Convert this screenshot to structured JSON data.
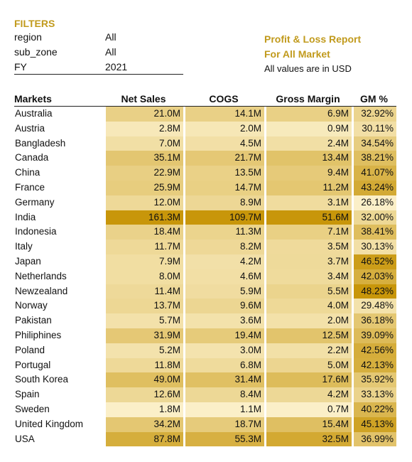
{
  "filters": {
    "title": "FILTERS",
    "items": [
      {
        "name": "region",
        "value": "All"
      },
      {
        "name": "sub_zone",
        "value": "All"
      },
      {
        "name": "FY",
        "value": "2021"
      }
    ]
  },
  "report": {
    "title": "Profit & Loss Report",
    "subtitle": "For All Market",
    "note": "All values are in USD"
  },
  "table": {
    "headers": [
      "Markets",
      "Net Sales",
      "COGS",
      "Gross Margin",
      "GM %"
    ],
    "rows": [
      {
        "market": "Australia",
        "net_sales": "21.0M",
        "cogs": "14.1M",
        "gross_margin": "6.9M",
        "gm_pct": "32.92%"
      },
      {
        "market": "Austria",
        "net_sales": "2.8M",
        "cogs": "2.0M",
        "gross_margin": "0.9M",
        "gm_pct": "30.11%"
      },
      {
        "market": "Bangladesh",
        "net_sales": "7.0M",
        "cogs": "4.5M",
        "gross_margin": "2.4M",
        "gm_pct": "34.54%"
      },
      {
        "market": "Canada",
        "net_sales": "35.1M",
        "cogs": "21.7M",
        "gross_margin": "13.4M",
        "gm_pct": "38.21%"
      },
      {
        "market": "China",
        "net_sales": "22.9M",
        "cogs": "13.5M",
        "gross_margin": "9.4M",
        "gm_pct": "41.07%"
      },
      {
        "market": "France",
        "net_sales": "25.9M",
        "cogs": "14.7M",
        "gross_margin": "11.2M",
        "gm_pct": "43.24%"
      },
      {
        "market": "Germany",
        "net_sales": "12.0M",
        "cogs": "8.9M",
        "gross_margin": "3.1M",
        "gm_pct": "26.18%"
      },
      {
        "market": "India",
        "net_sales": "161.3M",
        "cogs": "109.7M",
        "gross_margin": "51.6M",
        "gm_pct": "32.00%"
      },
      {
        "market": "Indonesia",
        "net_sales": "18.4M",
        "cogs": "11.3M",
        "gross_margin": "7.1M",
        "gm_pct": "38.41%"
      },
      {
        "market": "Italy",
        "net_sales": "11.7M",
        "cogs": "8.2M",
        "gross_margin": "3.5M",
        "gm_pct": "30.13%"
      },
      {
        "market": "Japan",
        "net_sales": "7.9M",
        "cogs": "4.2M",
        "gross_margin": "3.7M",
        "gm_pct": "46.52%"
      },
      {
        "market": "Netherlands",
        "net_sales": "8.0M",
        "cogs": "4.6M",
        "gross_margin": "3.4M",
        "gm_pct": "42.03%"
      },
      {
        "market": "Newzealand",
        "net_sales": "11.4M",
        "cogs": "5.9M",
        "gross_margin": "5.5M",
        "gm_pct": "48.23%"
      },
      {
        "market": "Norway",
        "net_sales": "13.7M",
        "cogs": "9.6M",
        "gross_margin": "4.0M",
        "gm_pct": "29.48%"
      },
      {
        "market": "Pakistan",
        "net_sales": "5.7M",
        "cogs": "3.6M",
        "gross_margin": "2.0M",
        "gm_pct": "36.18%"
      },
      {
        "market": "Philiphines",
        "net_sales": "31.9M",
        "cogs": "19.4M",
        "gross_margin": "12.5M",
        "gm_pct": "39.09%"
      },
      {
        "market": "Poland",
        "net_sales": "5.2M",
        "cogs": "3.0M",
        "gross_margin": "2.2M",
        "gm_pct": "42.56%"
      },
      {
        "market": "Portugal",
        "net_sales": "11.8M",
        "cogs": "6.8M",
        "gross_margin": "5.0M",
        "gm_pct": "42.13%"
      },
      {
        "market": "South Korea",
        "net_sales": "49.0M",
        "cogs": "31.4M",
        "gross_margin": "17.6M",
        "gm_pct": "35.92%"
      },
      {
        "market": "Spain",
        "net_sales": "12.6M",
        "cogs": "8.4M",
        "gross_margin": "4.2M",
        "gm_pct": "33.13%"
      },
      {
        "market": "Sweden",
        "net_sales": "1.8M",
        "cogs": "1.1M",
        "gross_margin": "0.7M",
        "gm_pct": "40.22%"
      },
      {
        "market": "United Kingdom",
        "net_sales": "34.2M",
        "cogs": "18.7M",
        "gross_margin": "15.4M",
        "gm_pct": "45.13%"
      },
      {
        "market": "USA",
        "net_sales": "87.8M",
        "cogs": "55.3M",
        "gross_margin": "32.5M",
        "gm_pct": "36.99%"
      }
    ]
  },
  "colors": {
    "accent": "#c19a1c",
    "heat_low": "#fff7d8",
    "heat_high": "#c8960a"
  }
}
